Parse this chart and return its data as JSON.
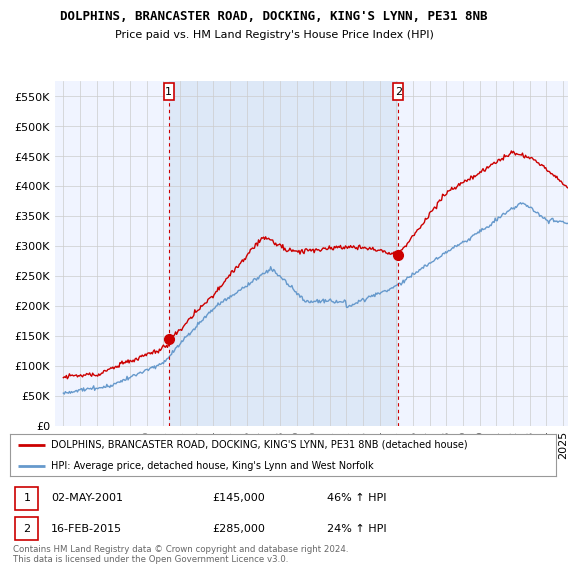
{
  "title": "DOLPHINS, BRANCASTER ROAD, DOCKING, KING'S LYNN, PE31 8NB",
  "subtitle": "Price paid vs. HM Land Registry's House Price Index (HPI)",
  "ylim": [
    0,
    575000
  ],
  "yticks": [
    0,
    50000,
    100000,
    150000,
    200000,
    250000,
    300000,
    350000,
    400000,
    450000,
    500000,
    550000
  ],
  "xlim_start": 1994.5,
  "xlim_end": 2025.3,
  "sale1_x": 2001.33,
  "sale1_y": 145000,
  "sale2_x": 2015.12,
  "sale2_y": 285000,
  "legend_line1": "DOLPHINS, BRANCASTER ROAD, DOCKING, KING'S LYNN, PE31 8NB (detached house)",
  "legend_line2": "HPI: Average price, detached house, King's Lynn and West Norfolk",
  "annotation1_date": "02-MAY-2001",
  "annotation1_price": "£145,000",
  "annotation1_hpi": "46% ↑ HPI",
  "annotation2_date": "16-FEB-2015",
  "annotation2_price": "£285,000",
  "annotation2_hpi": "24% ↑ HPI",
  "footer": "Contains HM Land Registry data © Crown copyright and database right 2024.\nThis data is licensed under the Open Government Licence v3.0.",
  "color_red": "#cc0000",
  "color_blue": "#6699cc",
  "color_blue_fill": "#ddeeff",
  "color_grid": "#cccccc",
  "background_chart": "#f0f4ff",
  "background_fig": "#ffffff"
}
